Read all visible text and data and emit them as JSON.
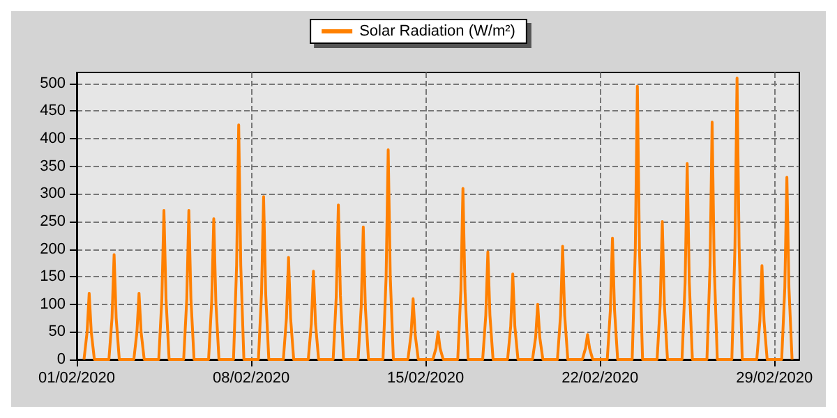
{
  "chart_data": {
    "type": "line",
    "x": [
      "2020-02-01T07:00",
      "2020-02-01T10:00",
      "2020-02-01T12:00",
      "2020-02-01T14:00",
      "2020-02-01T17:00",
      "2020-02-02T07:00",
      "2020-02-02T10:00",
      "2020-02-02T12:00",
      "2020-02-02T14:00",
      "2020-02-02T17:00",
      "2020-02-03T07:00",
      "2020-02-03T10:00",
      "2020-02-03T12:00",
      "2020-02-03T14:00",
      "2020-02-03T17:00",
      "2020-02-04T07:00",
      "2020-02-04T10:00",
      "2020-02-04T12:00",
      "2020-02-04T14:00",
      "2020-02-04T17:00",
      "2020-02-05T07:00",
      "2020-02-05T10:00",
      "2020-02-05T12:00",
      "2020-02-05T14:00",
      "2020-02-05T17:00",
      "2020-02-06T07:00",
      "2020-02-06T10:00",
      "2020-02-06T12:00",
      "2020-02-06T14:00",
      "2020-02-06T17:00",
      "2020-02-07T07:00",
      "2020-02-07T10:00",
      "2020-02-07T12:00",
      "2020-02-07T14:00",
      "2020-02-07T17:00",
      "2020-02-08T07:00",
      "2020-02-08T10:00",
      "2020-02-08T12:00",
      "2020-02-08T14:00",
      "2020-02-08T17:00",
      "2020-02-09T07:00",
      "2020-02-09T10:00",
      "2020-02-09T12:00",
      "2020-02-09T14:00",
      "2020-02-09T17:00",
      "2020-02-10T07:00",
      "2020-02-10T10:00",
      "2020-02-10T12:00",
      "2020-02-10T14:00",
      "2020-02-10T17:00",
      "2020-02-11T07:00",
      "2020-02-11T10:00",
      "2020-02-11T12:00",
      "2020-02-11T14:00",
      "2020-02-11T17:00",
      "2020-02-12T07:00",
      "2020-02-12T10:00",
      "2020-02-12T12:00",
      "2020-02-12T14:00",
      "2020-02-12T17:00",
      "2020-02-13T07:00",
      "2020-02-13T10:00",
      "2020-02-13T12:00",
      "2020-02-13T14:00",
      "2020-02-13T17:00",
      "2020-02-14T07:00",
      "2020-02-14T10:00",
      "2020-02-14T12:00",
      "2020-02-14T14:00",
      "2020-02-14T17:00",
      "2020-02-15T07:00",
      "2020-02-15T10:00",
      "2020-02-15T12:00",
      "2020-02-15T14:00",
      "2020-02-15T17:00",
      "2020-02-16T07:00",
      "2020-02-16T10:00",
      "2020-02-16T12:00",
      "2020-02-16T14:00",
      "2020-02-16T17:00",
      "2020-02-17T07:00",
      "2020-02-17T10:00",
      "2020-02-17T12:00",
      "2020-02-17T14:00",
      "2020-02-17T17:00",
      "2020-02-18T07:00",
      "2020-02-18T10:00",
      "2020-02-18T12:00",
      "2020-02-18T14:00",
      "2020-02-18T17:00",
      "2020-02-19T07:00",
      "2020-02-19T10:00",
      "2020-02-19T12:00",
      "2020-02-19T14:00",
      "2020-02-19T17:00",
      "2020-02-20T07:00",
      "2020-02-20T10:00",
      "2020-02-20T12:00",
      "2020-02-20T14:00",
      "2020-02-20T17:00",
      "2020-02-21T07:00",
      "2020-02-21T10:00",
      "2020-02-21T12:00",
      "2020-02-21T14:00",
      "2020-02-21T17:00",
      "2020-02-22T07:00",
      "2020-02-22T10:00",
      "2020-02-22T12:00",
      "2020-02-22T14:00",
      "2020-02-22T17:00",
      "2020-02-23T07:00",
      "2020-02-23T10:00",
      "2020-02-23T12:00",
      "2020-02-23T14:00",
      "2020-02-23T17:00",
      "2020-02-24T07:00",
      "2020-02-24T10:00",
      "2020-02-24T12:00",
      "2020-02-24T14:00",
      "2020-02-24T17:00",
      "2020-02-25T07:00",
      "2020-02-25T10:00",
      "2020-02-25T12:00",
      "2020-02-25T14:00",
      "2020-02-25T17:00",
      "2020-02-26T07:00",
      "2020-02-26T10:00",
      "2020-02-26T12:00",
      "2020-02-26T14:00",
      "2020-02-26T17:00",
      "2020-02-27T07:00",
      "2020-02-27T10:00",
      "2020-02-27T12:00",
      "2020-02-27T14:00",
      "2020-02-27T17:00",
      "2020-02-28T07:00",
      "2020-02-28T10:00",
      "2020-02-28T12:00",
      "2020-02-28T14:00",
      "2020-02-28T17:00",
      "2020-02-29T07:00",
      "2020-02-29T10:00",
      "2020-02-29T12:00",
      "2020-02-29T14:00",
      "2020-02-29T17:00"
    ],
    "series": [
      {
        "name": "Solar Radiation (W/m²)",
        "color": "#ff8000",
        "values": [
          0,
          50,
          120,
          50,
          0,
          0,
          75,
          190,
          75,
          0,
          0,
          50,
          120,
          50,
          0,
          0,
          110,
          270,
          110,
          0,
          0,
          110,
          270,
          110,
          0,
          0,
          105,
          255,
          105,
          0,
          0,
          170,
          425,
          170,
          0,
          0,
          120,
          295,
          120,
          0,
          0,
          75,
          185,
          75,
          0,
          0,
          65,
          160,
          65,
          0,
          0,
          115,
          280,
          115,
          0,
          0,
          95,
          240,
          95,
          0,
          0,
          150,
          380,
          150,
          0,
          0,
          45,
          110,
          45,
          0,
          0,
          20,
          50,
          20,
          0,
          0,
          125,
          310,
          125,
          0,
          0,
          80,
          195,
          80,
          0,
          0,
          60,
          155,
          60,
          0,
          0,
          40,
          100,
          40,
          0,
          0,
          80,
          205,
          80,
          0,
          0,
          20,
          45,
          20,
          0,
          0,
          90,
          220,
          90,
          0,
          0,
          200,
          495,
          200,
          0,
          0,
          100,
          250,
          100,
          0,
          0,
          140,
          355,
          140,
          0,
          0,
          170,
          430,
          170,
          0,
          0,
          205,
          510,
          205,
          0,
          0,
          70,
          170,
          70,
          0,
          0,
          130,
          330,
          130,
          0
        ]
      }
    ],
    "xlim": [
      "2020-02-01",
      "2020-03-01"
    ],
    "xticks": [
      {
        "value": "2020-02-01",
        "label": "01/02/2020"
      },
      {
        "value": "2020-02-08",
        "label": "08/02/2020"
      },
      {
        "value": "2020-02-15",
        "label": "15/02/2020"
      },
      {
        "value": "2020-02-22",
        "label": "22/02/2020"
      },
      {
        "value": "2020-02-29",
        "label": "29/02/2020"
      }
    ],
    "ylim": [
      0,
      520
    ],
    "yticks": [
      0,
      50,
      100,
      150,
      200,
      250,
      300,
      350,
      400,
      450,
      500
    ],
    "grid": true,
    "legend": "top",
    "line_style": "solid",
    "marker": "none"
  }
}
